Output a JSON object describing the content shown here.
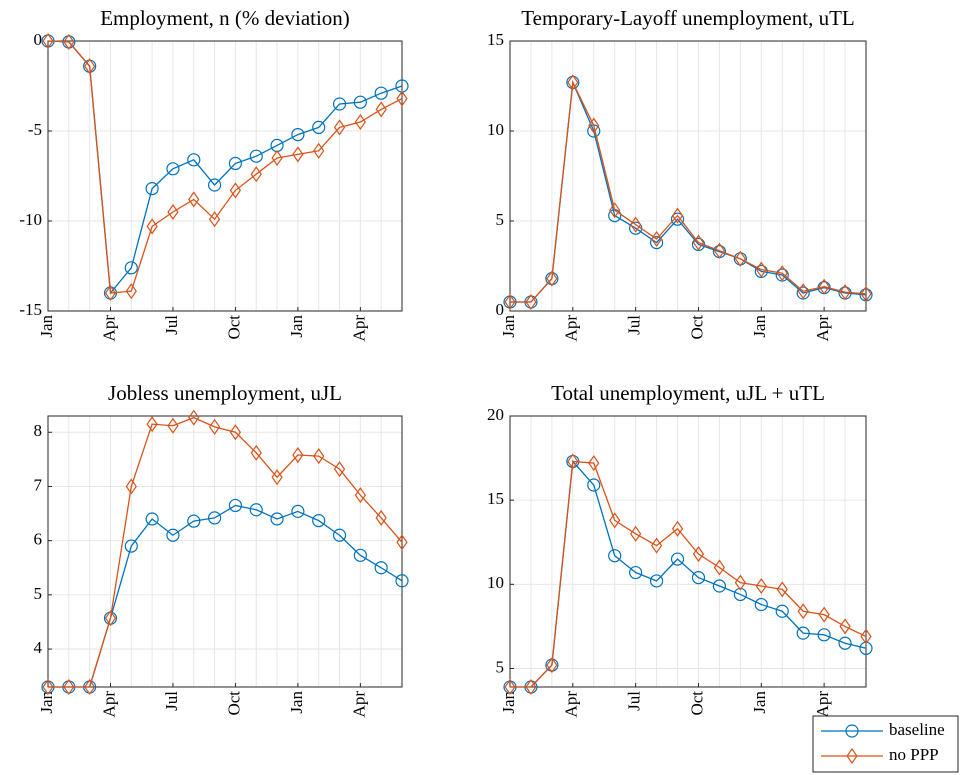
{
  "chart_data": [
    {
      "type": "line",
      "title": "Employment, n (% deviation)",
      "categories": [
        "Jan",
        null,
        null,
        "Apr",
        null,
        null,
        "Jul",
        null,
        null,
        "Oct",
        null,
        null,
        "Jan",
        null,
        null,
        "Apr",
        null,
        null
      ],
      "ylim": [
        -15,
        0
      ],
      "yticks": [
        -15,
        -10,
        -5,
        0
      ],
      "grid": true,
      "series": [
        {
          "name": "baseline",
          "color": "#0072BD",
          "marker": "circle",
          "values": [
            0,
            -0.05,
            -1.4,
            -14,
            -12.6,
            -8.2,
            -7.1,
            -6.6,
            -8.0,
            -6.8,
            -6.4,
            -5.8,
            -5.2,
            -4.8,
            -3.5,
            -3.4,
            -2.9,
            -2.5
          ]
        },
        {
          "name": "no PPP",
          "color": "#D95319",
          "marker": "diamond",
          "values": [
            0,
            -0.05,
            -1.4,
            -14,
            -13.9,
            -10.3,
            -9.5,
            -8.8,
            -9.9,
            -8.3,
            -7.4,
            -6.5,
            -6.3,
            -6.1,
            -4.8,
            -4.5,
            -3.8,
            -3.2
          ]
        }
      ]
    },
    {
      "type": "line",
      "title": "Temporary-Layoff unemployment, uTL",
      "categories": [
        "Jan",
        null,
        null,
        "Apr",
        null,
        null,
        "Jul",
        null,
        null,
        "Oct",
        null,
        null,
        "Jan",
        null,
        null,
        "Apr",
        null,
        null
      ],
      "ylim": [
        0,
        15
      ],
      "yticks": [
        0,
        5,
        10,
        15
      ],
      "grid": true,
      "series": [
        {
          "name": "baseline",
          "color": "#0072BD",
          "marker": "circle",
          "values": [
            0.5,
            0.5,
            1.8,
            12.7,
            10.0,
            5.3,
            4.6,
            3.8,
            5.1,
            3.7,
            3.3,
            2.9,
            2.2,
            2.0,
            1.0,
            1.3,
            1.0,
            0.9
          ]
        },
        {
          "name": "no PPP",
          "color": "#D95319",
          "marker": "diamond",
          "values": [
            0.5,
            0.5,
            1.8,
            12.7,
            10.3,
            5.6,
            4.8,
            4.0,
            5.3,
            3.8,
            3.35,
            2.9,
            2.3,
            2.1,
            1.1,
            1.35,
            1.05,
            0.95
          ]
        }
      ]
    },
    {
      "type": "line",
      "title": "Jobless unemployment, uJL",
      "categories": [
        "Jan",
        null,
        null,
        "Apr",
        null,
        null,
        "Jul",
        null,
        null,
        "Oct",
        null,
        null,
        "Jan",
        null,
        null,
        "Apr",
        null,
        null
      ],
      "ylim": [
        3.3,
        8.3
      ],
      "yticks": [
        4,
        5,
        6,
        7,
        8
      ],
      "grid": true,
      "series": [
        {
          "name": "baseline",
          "color": "#0072BD",
          "marker": "circle",
          "values": [
            3.3,
            3.3,
            3.3,
            4.57,
            5.9,
            6.4,
            6.1,
            6.36,
            6.42,
            6.65,
            6.57,
            6.4,
            6.54,
            6.37,
            6.1,
            5.73,
            5.5,
            5.26
          ]
        },
        {
          "name": "no PPP",
          "color": "#D95319",
          "marker": "diamond",
          "values": [
            3.3,
            3.3,
            3.3,
            4.57,
            7.0,
            8.15,
            8.12,
            8.27,
            8.1,
            8.0,
            7.62,
            7.17,
            7.58,
            7.56,
            7.32,
            6.84,
            6.42,
            5.97
          ]
        }
      ]
    },
    {
      "type": "line",
      "title": "Total unemployment, uJL + uTL",
      "categories": [
        "Jan",
        null,
        null,
        "Apr",
        null,
        null,
        "Jul",
        null,
        null,
        "Oct",
        null,
        null,
        "Jan",
        null,
        null,
        "Apr",
        null,
        null
      ],
      "ylim": [
        3.9,
        20
      ],
      "yticks": [
        5,
        10,
        15,
        20
      ],
      "grid": true,
      "legend": "southeast",
      "series": [
        {
          "name": "baseline",
          "color": "#0072BD",
          "marker": "circle",
          "values": [
            3.9,
            3.9,
            5.2,
            17.3,
            15.9,
            11.7,
            10.7,
            10.2,
            11.5,
            10.4,
            9.9,
            9.4,
            8.8,
            8.4,
            7.1,
            7.0,
            6.5,
            6.2
          ]
        },
        {
          "name": "no PPP",
          "color": "#D95319",
          "marker": "diamond",
          "values": [
            3.9,
            3.9,
            5.2,
            17.3,
            17.2,
            13.8,
            13.0,
            12.3,
            13.3,
            11.8,
            11.0,
            10.1,
            9.9,
            9.7,
            8.4,
            8.2,
            7.5,
            6.9
          ]
        }
      ]
    }
  ]
}
